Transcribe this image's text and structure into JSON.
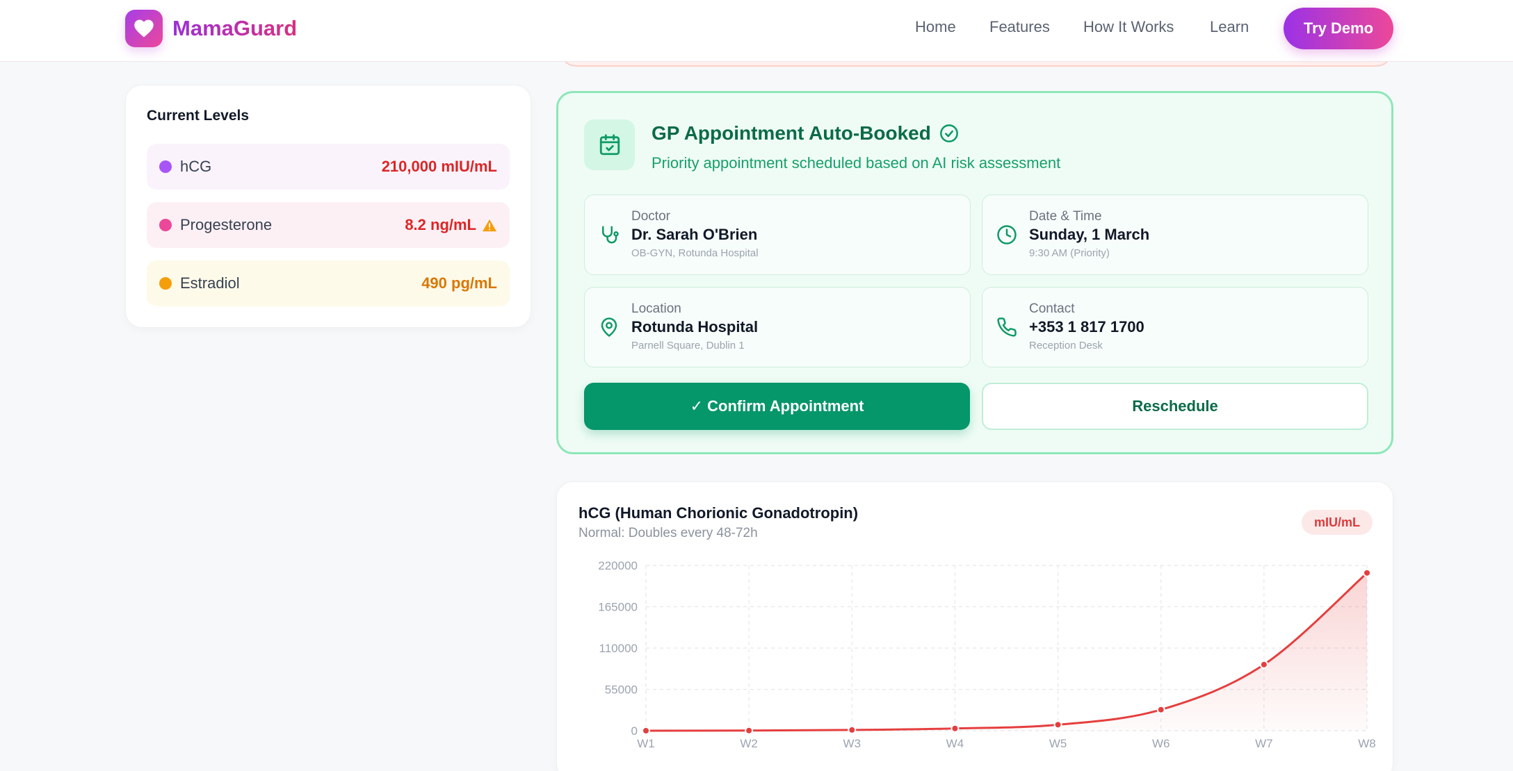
{
  "header": {
    "brand": "MamaGuard",
    "nav": [
      "Home",
      "Features",
      "How It Works",
      "Learn"
    ],
    "cta": "Try Demo"
  },
  "levels": {
    "title": "Current Levels",
    "items": [
      {
        "name": "hCG",
        "value": "210,000 mIU/mL",
        "dot": "#a855f7",
        "bg": "#faf3fc",
        "color": "#dc2626",
        "warning": false
      },
      {
        "name": "Progesterone",
        "value": "8.2 ng/mL",
        "dot": "#ec4899",
        "bg": "#fdf0f5",
        "color": "#dc2626",
        "warning": true
      },
      {
        "name": "Estradiol",
        "value": "490 pg/mL",
        "dot": "#f59e0b",
        "bg": "#fefae9",
        "color": "#d97706",
        "warning": false
      }
    ]
  },
  "appointment": {
    "title": "GP Appointment Auto-Booked",
    "subtitle": "Priority appointment scheduled based on AI risk assessment",
    "doctor": {
      "label": "Doctor",
      "value": "Dr. Sarah O'Brien",
      "detail": "OB-GYN, Rotunda Hospital",
      "icon": "stethoscope-icon"
    },
    "datetime": {
      "label": "Date & Time",
      "value": "Sunday, 1 March",
      "detail": "9:30 AM (Priority)",
      "icon": "clock-icon"
    },
    "location": {
      "label": "Location",
      "value": "Rotunda Hospital",
      "detail": "Parnell Square, Dublin 1",
      "icon": "map-pin-icon"
    },
    "contact": {
      "label": "Contact",
      "value": "+353 1 817 1700",
      "detail": "Reception Desk",
      "icon": "phone-icon"
    },
    "confirm_label": "✓ Confirm Appointment",
    "reschedule_label": "Reschedule"
  },
  "chart_data": {
    "type": "area",
    "title": "hCG (Human Chorionic Gonadotropin)",
    "subtitle": "Normal: Doubles every 48-72h",
    "unit": "mIU/mL",
    "categories": [
      "W1",
      "W2",
      "W3",
      "W4",
      "W5",
      "W6",
      "W7",
      "W8"
    ],
    "values": [
      5,
      200,
      1000,
      3000,
      8000,
      28000,
      88000,
      210000
    ],
    "yticks": [
      0,
      55000,
      110000,
      165000,
      220000
    ],
    "ylim": [
      0,
      220000
    ],
    "grid": true,
    "line_color": "#e53e3e"
  }
}
